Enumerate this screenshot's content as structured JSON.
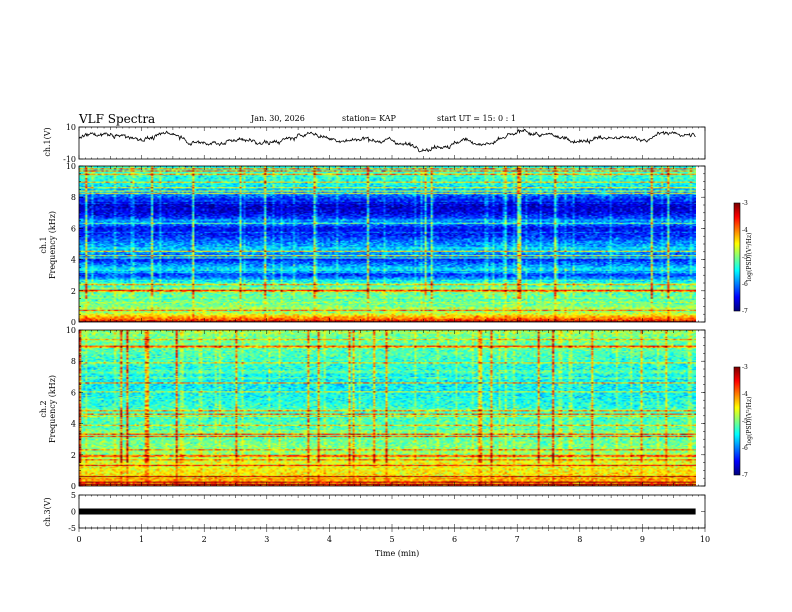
{
  "header": {
    "title": "VLF Spectra",
    "date": "Jan. 30, 2026",
    "station": "station= KAP",
    "start": "start  UT =   15: 0  : 1"
  },
  "colors": {
    "trace": "#000000",
    "axis": "#000000",
    "colormap": [
      "#00007f",
      "#0000ff",
      "#0080ff",
      "#00ffff",
      "#00ff80",
      "#80ff00",
      "#ffff00",
      "#ff8000",
      "#ff0000",
      "#7f0000"
    ]
  },
  "chart_data": [
    {
      "type": "line",
      "name": "ch1-waveform",
      "ylabel": "ch.1(V)",
      "ylim": [
        -10,
        10
      ],
      "yticks": [
        "10",
        "-10"
      ],
      "xlim": [
        0,
        10
      ],
      "x_end": 9.85,
      "baseline": 2.5,
      "fluctuation": 4.5
    },
    {
      "type": "heatmap",
      "name": "ch1-spectrogram",
      "ylabel": "ch.1\nFrequency (kHz)",
      "ylim": [
        0,
        10
      ],
      "yticks": [
        "0",
        "2",
        "4",
        "6",
        "8",
        "10"
      ],
      "xlim": [
        0,
        10
      ],
      "x_end": 9.85,
      "colorbar": {
        "label": "log(PSD)(V²/Hz)",
        "range": [
          -7,
          -3
        ],
        "ticks": [
          "-3",
          "-4",
          "-5",
          "-6",
          "-7"
        ]
      },
      "profile": [
        {
          "f": 0.0,
          "v": -3.6
        },
        {
          "f": 0.3,
          "v": -4.2
        },
        {
          "f": 0.6,
          "v": -4.9
        },
        {
          "f": 1.0,
          "v": -5.0
        },
        {
          "f": 1.5,
          "v": -5.2
        },
        {
          "f": 2.0,
          "v": -5.0
        },
        {
          "f": 2.5,
          "v": -5.4
        },
        {
          "f": 3.0,
          "v": -6.3
        },
        {
          "f": 3.4,
          "v": -5.6
        },
        {
          "f": 4.0,
          "v": -6.4
        },
        {
          "f": 4.6,
          "v": -5.7
        },
        {
          "f": 5.0,
          "v": -5.9
        },
        {
          "f": 5.6,
          "v": -6.4
        },
        {
          "f": 6.0,
          "v": -6.5
        },
        {
          "f": 6.4,
          "v": -5.9
        },
        {
          "f": 7.0,
          "v": -6.6
        },
        {
          "f": 7.6,
          "v": -6.7
        },
        {
          "f": 8.2,
          "v": -6.0
        },
        {
          "f": 8.8,
          "v": -5.5
        },
        {
          "f": 9.4,
          "v": -5.3
        },
        {
          "f": 10.0,
          "v": -5.4
        }
      ]
    },
    {
      "type": "heatmap",
      "name": "ch2-spectrogram",
      "ylabel": "ch.2\nFrequency (kHz)",
      "ylim": [
        0,
        10
      ],
      "yticks": [
        "0",
        "2",
        "4",
        "6",
        "8",
        "10"
      ],
      "xlim": [
        0,
        10
      ],
      "x_end": 9.85,
      "colorbar": {
        "label": "log(PSD)(V²/Hz)",
        "range": [
          -7,
          -3
        ],
        "ticks": [
          "-3",
          "-4",
          "-5",
          "-6",
          "-7"
        ]
      },
      "profile": [
        {
          "f": 0.0,
          "v": -3.8
        },
        {
          "f": 0.5,
          "v": -4.4
        },
        {
          "f": 1.0,
          "v": -4.5
        },
        {
          "f": 1.5,
          "v": -4.6
        },
        {
          "f": 2.0,
          "v": -4.9
        },
        {
          "f": 3.0,
          "v": -5.1
        },
        {
          "f": 4.0,
          "v": -5.2
        },
        {
          "f": 5.0,
          "v": -5.3
        },
        {
          "f": 6.0,
          "v": -5.5
        },
        {
          "f": 7.0,
          "v": -5.5
        },
        {
          "f": 8.0,
          "v": -5.3
        },
        {
          "f": 9.0,
          "v": -5.1
        },
        {
          "f": 10.0,
          "v": -5.0
        }
      ]
    },
    {
      "type": "line",
      "name": "ch3-waveform",
      "ylabel": "ch.3(V)",
      "ylim": [
        -5,
        5
      ],
      "yticks": [
        "5",
        "0",
        "-5"
      ],
      "xlim": [
        0,
        10
      ],
      "x_end": 9.85,
      "baseline": 0,
      "fluctuation": 0.35
    }
  ],
  "xaxis": {
    "label": "Time (min)",
    "ticks": [
      "0",
      "1",
      "2",
      "3",
      "4",
      "5",
      "6",
      "7",
      "8",
      "9",
      "10"
    ]
  }
}
